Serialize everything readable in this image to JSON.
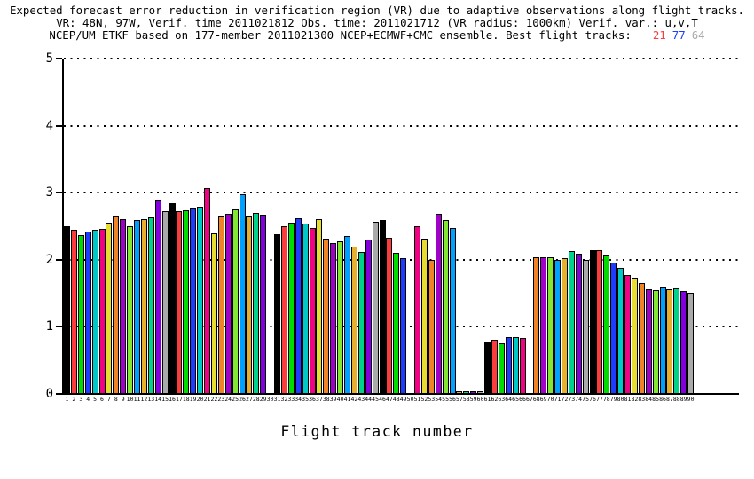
{
  "title": {
    "line1": "Expected forecast error reduction in verification region (VR) due to adaptive observations along flight tracks.",
    "line2": "VR: 48N, 97W, Verif. time 2011021812 Obs. time: 2011021712 (VR radius: 1000km)  Verif. var.: u,v,T",
    "line3": "NCEP/UM ETKF based on 177-member 2011021300 NCEP+ECMWF+CMC ensemble. Best flight tracks:",
    "best_tracks": [
      {
        "label": "21",
        "color": "#fa3c3c"
      },
      {
        "label": "77",
        "color": "#1e3cff"
      },
      {
        "label": "64",
        "color": "#aaaaaa"
      }
    ]
  },
  "chart_data": {
    "type": "bar",
    "title": "Expected forecast error reduction in verification region (VR) due to adaptive observations along flight tracks.",
    "xlabel": "Flight track number",
    "ylabel": "",
    "ylim": [
      0,
      5
    ],
    "yticks": [
      0,
      1,
      2,
      3,
      4,
      5
    ],
    "grid": "dotted horizontal lines at integer values",
    "legend": "none",
    "bar_outline_color": "#000000",
    "background_color": "#ffffff",
    "palette_cycle_note": "bar fill color = palette[(track-1) mod 15]",
    "palette": [
      "#000000",
      "#fa3c3c",
      "#00dc00",
      "#1e3cff",
      "#00c8c8",
      "#f00082",
      "#e6dc32",
      "#f08228",
      "#a000c8",
      "#82e632",
      "#00a0ff",
      "#e6af2d",
      "#00d28c",
      "#8200dc",
      "#aaaaaa"
    ],
    "x": [
      1,
      2,
      3,
      4,
      5,
      6,
      7,
      8,
      9,
      10,
      11,
      12,
      13,
      14,
      15,
      16,
      17,
      18,
      19,
      20,
      21,
      22,
      23,
      24,
      25,
      26,
      27,
      28,
      29,
      30,
      31,
      32,
      33,
      34,
      35,
      36,
      37,
      38,
      39,
      40,
      41,
      42,
      43,
      44,
      45,
      46,
      47,
      48,
      49,
      50,
      51,
      52,
      53,
      54,
      55,
      56,
      57,
      58,
      59,
      60,
      61,
      62,
      63,
      64,
      65,
      66,
      67,
      68,
      69,
      70,
      71,
      72,
      73,
      74,
      75,
      76,
      77,
      78,
      79,
      80,
      81,
      82,
      83,
      84,
      85,
      86,
      87,
      88,
      89,
      90
    ],
    "values": [
      2.5,
      2.45,
      2.37,
      2.42,
      2.45,
      2.46,
      2.55,
      2.65,
      2.61,
      2.5,
      2.59,
      2.61,
      2.63,
      2.89,
      2.73,
      2.84,
      2.72,
      2.74,
      2.77,
      2.79,
      3.07,
      2.39,
      2.65,
      2.68,
      2.75,
      2.98,
      2.64,
      2.7,
      2.67,
      0,
      2.38,
      2.5,
      2.55,
      2.62,
      2.54,
      2.48,
      2.6,
      2.32,
      2.25,
      2.27,
      2.36,
      2.19,
      2.12,
      2.3,
      2.56,
      2.59,
      2.33,
      2.1,
      2.02,
      0,
      2.5,
      2.31,
      2.0,
      2.68,
      2.59,
      2.47,
      0.04,
      0.04,
      0.04,
      0.04,
      0.78,
      0.81,
      0.75,
      0.84,
      0.84,
      0.83,
      0,
      2.04,
      2.04,
      2.04,
      2.0,
      2.02,
      2.13,
      2.09,
      2.0,
      2.14,
      2.14,
      2.06,
      1.96,
      1.88,
      1.77,
      1.73,
      1.66,
      1.56,
      1.55,
      1.59,
      1.56,
      1.58,
      1.53,
      1.51
    ]
  }
}
